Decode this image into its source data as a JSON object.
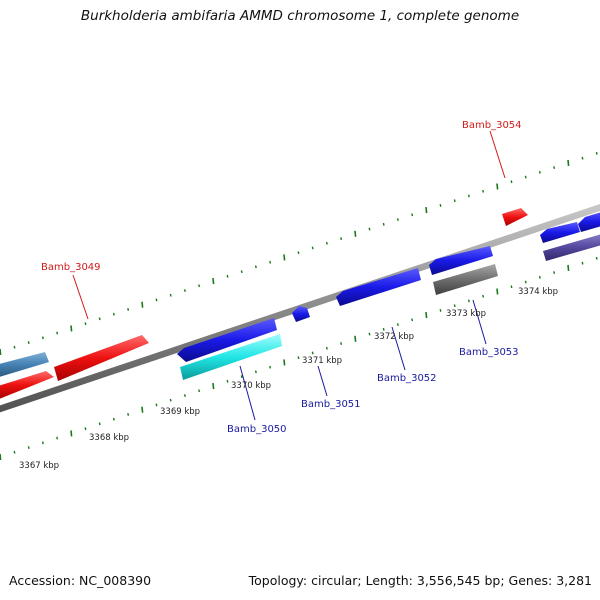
{
  "title": "Burkholderia ambifaria AMMD chromosome 1, complete genome",
  "footer": {
    "accession": "Accession: NC_008390",
    "summary": "Topology: circular; Length: 3,556,545 bp; Genes: 3,281"
  },
  "colors": {
    "backbone": "#8a8a8a",
    "tick": "#1a7a1a",
    "forward_label": "#d11a1a",
    "reverse_label": "#1a1aa0",
    "ruler_text": "#222222"
  },
  "ruler": [
    {
      "label": "3367 kbp",
      "kbp": 3367
    },
    {
      "label": "3368 kbp",
      "kbp": 3368
    },
    {
      "label": "3369 kbp",
      "kbp": 3369
    },
    {
      "label": "3370 kbp",
      "kbp": 3370
    },
    {
      "label": "3371 kbp",
      "kbp": 3371
    },
    {
      "label": "3372 kbp",
      "kbp": 3372
    },
    {
      "label": "3373 kbp",
      "kbp": 3373
    },
    {
      "label": "3374 kbp",
      "kbp": 3374
    }
  ],
  "gene_labels": [
    {
      "name": "Bamb_3049",
      "strand": "forward"
    },
    {
      "name": "Bamb_3054",
      "strand": "forward"
    },
    {
      "name": "Bamb_3050",
      "strand": "reverse"
    },
    {
      "name": "Bamb_3051",
      "strand": "reverse"
    },
    {
      "name": "Bamb_3052",
      "strand": "reverse"
    },
    {
      "name": "Bamb_3053",
      "strand": "reverse"
    }
  ]
}
